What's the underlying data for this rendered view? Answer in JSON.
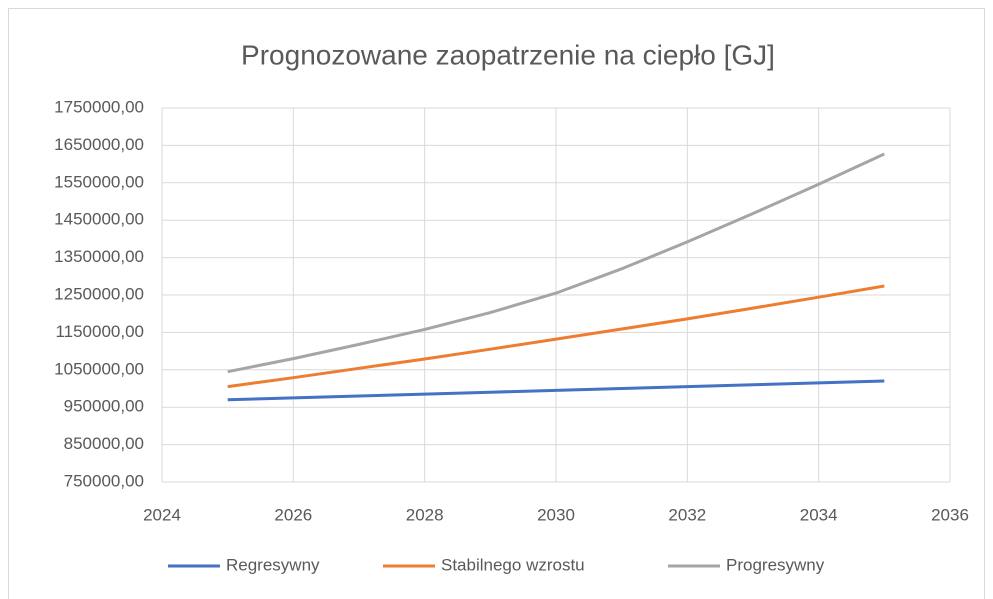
{
  "chart_data": {
    "type": "line",
    "title": "Prognozowane zaopatrzenie na ciepło [GJ]",
    "x": [
      2025,
      2026,
      2027,
      2028,
      2029,
      2030,
      2031,
      2032,
      2033,
      2034,
      2035
    ],
    "series": [
      {
        "name": "Regresywny",
        "color": "#4472c4",
        "values": [
          970000,
          975000,
          980000,
          985000,
          990000,
          995000,
          1000000,
          1005000,
          1010000,
          1015000,
          1020000
        ]
      },
      {
        "name": "Stabilnego wzrostu",
        "color": "#ed7d31",
        "values": [
          1005000,
          1029000,
          1054000,
          1079000,
          1105000,
          1132000,
          1159000,
          1186000,
          1215000,
          1244000,
          1274000
        ]
      },
      {
        "name": "Progresywny",
        "color": "#a5a5a5",
        "values": [
          1045000,
          1080000,
          1118000,
          1158000,
          1203000,
          1255000,
          1320000,
          1392000,
          1468000,
          1546000,
          1627000
        ]
      }
    ],
    "xlim": [
      2024,
      2036
    ],
    "xticks": [
      2024,
      2026,
      2028,
      2030,
      2032,
      2034,
      2036
    ],
    "ylim": [
      750000,
      1750000
    ],
    "yticks": [
      {
        "value": 750000,
        "label": "750000,00"
      },
      {
        "value": 850000,
        "label": "850000,00"
      },
      {
        "value": 950000,
        "label": "950000,00"
      },
      {
        "value": 1050000,
        "label": "1050000,00"
      },
      {
        "value": 1150000,
        "label": "1150000,00"
      },
      {
        "value": 1250000,
        "label": "1250000,00"
      },
      {
        "value": 1350000,
        "label": "1350000,00"
      },
      {
        "value": 1450000,
        "label": "1450000,00"
      },
      {
        "value": 1550000,
        "label": "1550000,00"
      },
      {
        "value": 1650000,
        "label": "1650000,00"
      },
      {
        "value": 1750000,
        "label": "1750000,00"
      }
    ],
    "grid": true,
    "legend": "bottom"
  }
}
